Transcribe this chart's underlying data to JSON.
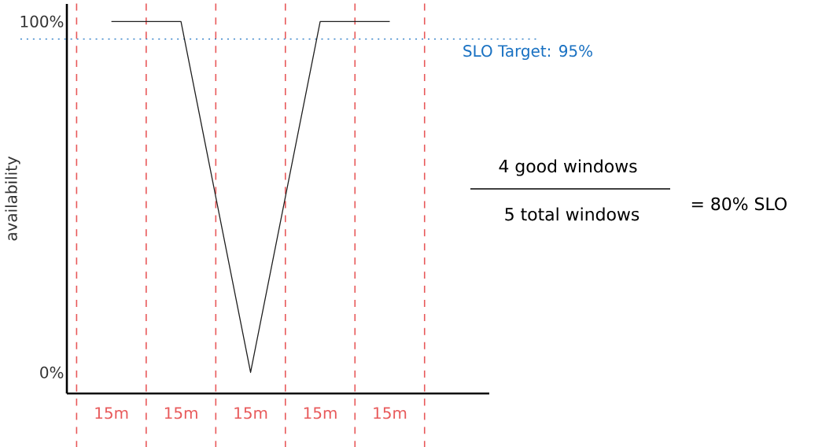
{
  "chart_data": {
    "type": "line",
    "ylabel": "availability",
    "categories": [
      "15m",
      "15m",
      "15m",
      "15m",
      "15m"
    ],
    "series": [
      {
        "color": "#1e1e1e",
        "values": [
          100,
          100,
          0,
          100,
          100
        ]
      }
    ],
    "ylim": [
      -6,
      105
    ],
    "yticks": [
      {
        "value": 0,
        "label": "0%"
      },
      {
        "value": 100,
        "label": "100%"
      }
    ],
    "ref_lines": [
      {
        "axis": "y",
        "value": 95,
        "label": "SLO Target: 95%",
        "color": "#1971c2",
        "line_style": "dotted"
      }
    ],
    "annotations": [
      "4 good windows",
      "5 total windows",
      "= 80% SLO"
    ]
  }
}
